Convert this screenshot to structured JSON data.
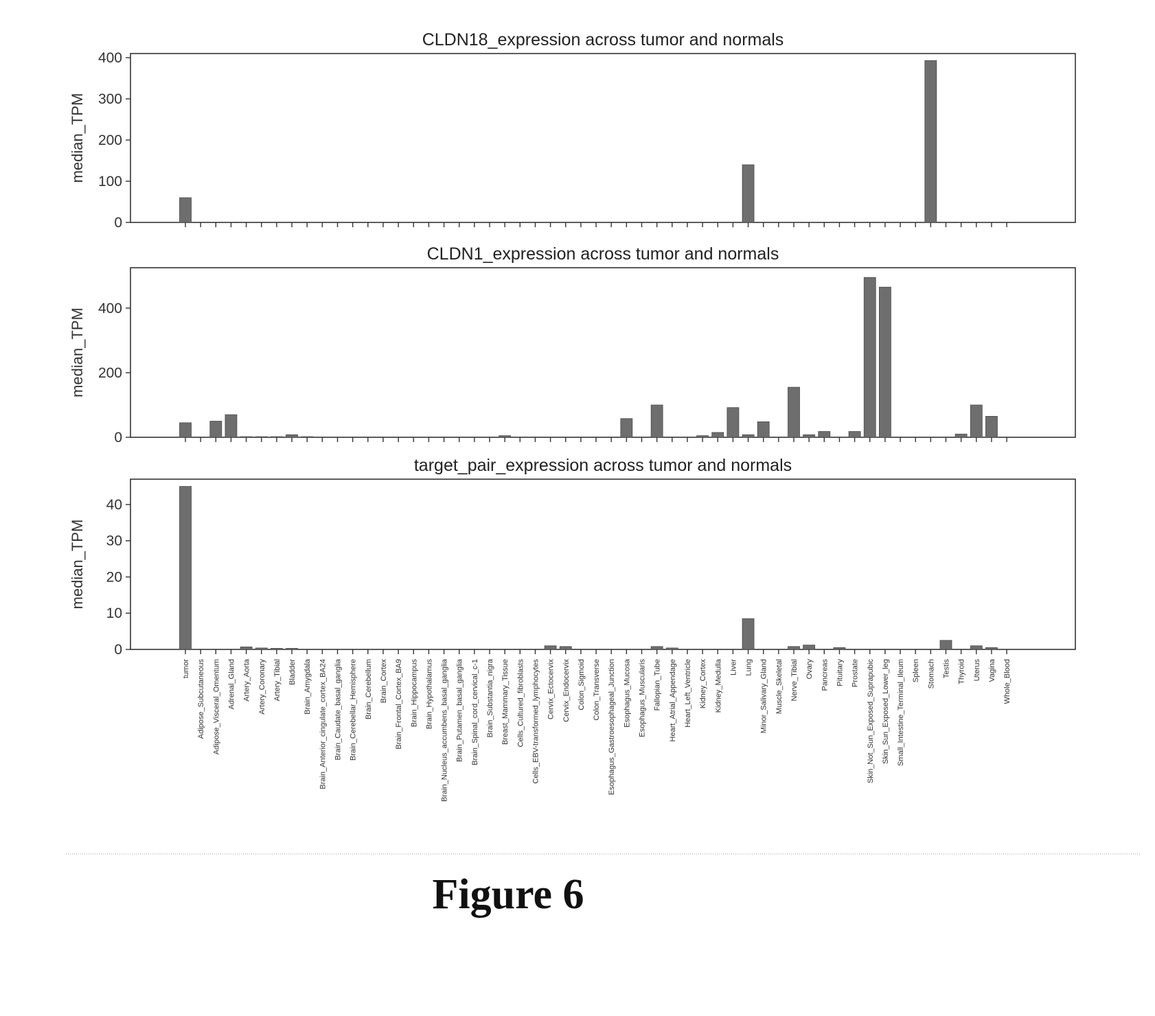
{
  "figure_caption": "Figure 6",
  "chart_data": [
    {
      "type": "bar",
      "title": "CLDN18_expression across tumor and normals",
      "ylabel": "median_TPM",
      "xlabel": "",
      "ylim": [
        0,
        410
      ],
      "yticks": [
        0,
        100,
        200,
        300,
        400
      ],
      "show_xtick_labels": false,
      "categories": [
        "tumor",
        "Adipose_Subcutaneous",
        "Adipose_Visceral_Omentum",
        "Adrenal_Gland",
        "Artery_Aorta",
        "Artery_Coronary",
        "Artery_Tibial",
        "Bladder",
        "Brain_Amygdala",
        "Brain_Anterior_cingulate_cortex_BA24",
        "Brain_Caudate_basal_ganglia",
        "Brain_Cerebellar_Hemisphere",
        "Brain_Cerebellum",
        "Brain_Cortex",
        "Brain_Frontal_Cortex_BA9",
        "Brain_Hippocampus",
        "Brain_Hypothalamus",
        "Brain_Nucleus_accumbens_basal_ganglia",
        "Brain_Putamen_basal_ganglia",
        "Brain_Spinal_cord_cervical_c-1",
        "Brain_Substantia_nigra",
        "Breast_Mammary_Tissue",
        "Cells_Cultured_fibroblasts",
        "Cells_EBV-transformed_lymphocytes",
        "Cervix_Ectocervix",
        "Cervix_Endocervix",
        "Colon_Sigmoid",
        "Colon_Transverse",
        "Esophagus_Gastroesophageal_Junction",
        "Esophagus_Mucosa",
        "Esophagus_Muscularis",
        "Fallopian_Tube",
        "Heart_Atrial_Appendage",
        "Heart_Left_Ventricle",
        "Kidney_Cortex",
        "Kidney_Medulla",
        "Liver",
        "Lung",
        "Minor_Salivary_Gland",
        "Muscle_Skeletal",
        "Nerve_Tibial",
        "Ovary",
        "Pancreas",
        "Pituitary",
        "Prostate",
        "Skin_Not_Sun_Exposed_Suprapubic",
        "Skin_Sun_Exposed_Lower_leg",
        "Small_Intestine_Terminal_Ileum",
        "Spleen",
        "Stomach",
        "Testis",
        "Thyroid",
        "Uterus",
        "Vagina",
        "Whole_Blood"
      ],
      "values": [
        60,
        0,
        0,
        0,
        0,
        0,
        0,
        0,
        0,
        0,
        0,
        0,
        0,
        0,
        0,
        0,
        0,
        0,
        0,
        0,
        0,
        0,
        0,
        0,
        0,
        0,
        0,
        0,
        0,
        0,
        0,
        0,
        0,
        0,
        0,
        0,
        0,
        140,
        0,
        0,
        0,
        0,
        0,
        0,
        0,
        0,
        0,
        0,
        0,
        393,
        0,
        0,
        0,
        0,
        0
      ]
    },
    {
      "type": "bar",
      "title": "CLDN1_expression across tumor and normals",
      "ylabel": "median_TPM",
      "xlabel": "",
      "ylim": [
        0,
        525
      ],
      "yticks": [
        0,
        200,
        400
      ],
      "show_xtick_labels": false,
      "categories": [
        "tumor",
        "Adipose_Subcutaneous",
        "Adipose_Visceral_Omentum",
        "Adrenal_Gland",
        "Artery_Aorta",
        "Artery_Coronary",
        "Artery_Tibial",
        "Bladder",
        "Brain_Amygdala",
        "Brain_Anterior_cingulate_cortex_BA24",
        "Brain_Caudate_basal_ganglia",
        "Brain_Cerebellar_Hemisphere",
        "Brain_Cerebellum",
        "Brain_Cortex",
        "Brain_Frontal_Cortex_BA9",
        "Brain_Hippocampus",
        "Brain_Hypothalamus",
        "Brain_Nucleus_accumbens_basal_ganglia",
        "Brain_Putamen_basal_ganglia",
        "Brain_Spinal_cord_cervical_c-1",
        "Brain_Substantia_nigra",
        "Breast_Mammary_Tissue",
        "Cells_Cultured_fibroblasts",
        "Cells_EBV-transformed_lymphocytes",
        "Cervix_Ectocervix",
        "Cervix_Endocervix",
        "Colon_Sigmoid",
        "Colon_Transverse",
        "Esophagus_Gastroesophageal_Junction",
        "Esophagus_Mucosa",
        "Esophagus_Muscularis",
        "Fallopian_Tube",
        "Heart_Atrial_Appendage",
        "Heart_Left_Ventricle",
        "Kidney_Cortex",
        "Kidney_Medulla",
        "Liver",
        "Lung",
        "Minor_Salivary_Gland",
        "Muscle_Skeletal",
        "Nerve_Tibial",
        "Ovary",
        "Pancreas",
        "Pituitary",
        "Prostate",
        "Skin_Not_Sun_Exposed_Suprapubic",
        "Skin_Sun_Exposed_Lower_leg",
        "Small_Intestine_Terminal_Ileum",
        "Spleen",
        "Stomach",
        "Testis",
        "Thyroid",
        "Uterus",
        "Vagina",
        "Whole_Blood"
      ],
      "values": [
        45,
        0,
        50,
        70,
        2,
        2,
        2,
        8,
        2,
        1,
        1,
        1,
        1,
        1,
        1,
        1,
        1,
        1,
        1,
        1,
        1,
        5,
        1,
        1,
        1,
        1,
        1,
        1,
        1,
        58,
        1,
        100,
        1,
        1,
        5,
        15,
        92,
        8,
        48,
        1,
        155,
        8,
        18,
        1,
        18,
        495,
        465,
        1,
        1,
        1,
        1,
        10,
        100,
        65,
        1
      ]
    },
    {
      "type": "bar",
      "title": "target_pair_expression across tumor and normals",
      "ylabel": "median_TPM",
      "xlabel": "",
      "ylim": [
        0,
        47
      ],
      "yticks": [
        0,
        10,
        20,
        30,
        40
      ],
      "show_xtick_labels": true,
      "categories": [
        "tumor",
        "Adipose_Subcutaneous",
        "Adipose_Visceral_Omentum",
        "Adrenal_Gland",
        "Artery_Aorta",
        "Artery_Coronary",
        "Artery_Tibial",
        "Bladder",
        "Brain_Amygdala",
        "Brain_Anterior_cingulate_cortex_BA24",
        "Brain_Caudate_basal_ganglia",
        "Brain_Cerebellar_Hemisphere",
        "Brain_Cerebellum",
        "Brain_Cortex",
        "Brain_Frontal_Cortex_BA9",
        "Brain_Hippocampus",
        "Brain_Hypothalamus",
        "Brain_Nucleus_accumbens_basal_ganglia",
        "Brain_Putamen_basal_ganglia",
        "Brain_Spinal_cord_cervical_c-1",
        "Brain_Substantia_nigra",
        "Breast_Mammary_Tissue",
        "Cells_Cultured_fibroblasts",
        "Cells_EBV-transformed_lymphocytes",
        "Cervix_Ectocervix",
        "Cervix_Endocervix",
        "Colon_Sigmoid",
        "Colon_Transverse",
        "Esophagus_Gastroesophageal_Junction",
        "Esophagus_Mucosa",
        "Esophagus_Muscularis",
        "Fallopian_Tube",
        "Heart_Atrial_Appendage",
        "Heart_Left_Ventricle",
        "Kidney_Cortex",
        "Kidney_Medulla",
        "Liver",
        "Lung",
        "Minor_Salivary_Gland",
        "Muscle_Skeletal",
        "Nerve_Tibial",
        "Ovary",
        "Pancreas",
        "Pituitary",
        "Prostate",
        "Skin_Not_Sun_Exposed_Suprapubic",
        "Skin_Sun_Exposed_Lower_leg",
        "Small_Intestine_Terminal_Ileum",
        "Spleen",
        "Stomach",
        "Testis",
        "Thyroid",
        "Uterus",
        "Vagina",
        "Whole_Blood"
      ],
      "values": [
        45,
        0,
        0,
        0,
        0.7,
        0.4,
        0.3,
        0.3,
        0,
        0,
        0,
        0,
        0,
        0,
        0,
        0,
        0,
        0,
        0,
        0,
        0,
        0,
        0,
        0,
        1,
        0.8,
        0,
        0,
        0,
        0,
        0,
        0.8,
        0.4,
        0,
        0,
        0,
        0,
        8.5,
        0,
        0,
        0.8,
        1.2,
        0,
        0.5,
        0,
        0,
        0,
        0,
        0,
        0,
        2.5,
        0,
        1,
        0.5,
        0
      ]
    }
  ]
}
